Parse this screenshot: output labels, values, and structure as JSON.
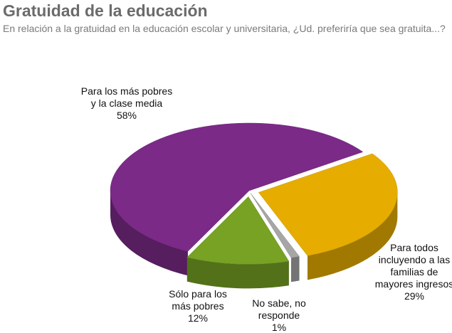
{
  "chart_data": {
    "type": "pie",
    "title": "Gratuidad de la educación",
    "subtitle": "En relación a la gratuidad en la educación escolar y universitaria, ¿Ud. preferiría que sea gratuita...?",
    "categories": [
      "Para todos incluyendo a las familias de mayores ingresos",
      "No sabe, no responde",
      "Sólo para los más pobres",
      "Para los más pobres y la clase media"
    ],
    "values": [
      29,
      1,
      12,
      58
    ],
    "value_labels": [
      "29%",
      "1%",
      "12%",
      "58%"
    ],
    "colors": [
      "#e6ad00",
      "#a6a6a6",
      "#77a224",
      "#7b2a88"
    ]
  }
}
